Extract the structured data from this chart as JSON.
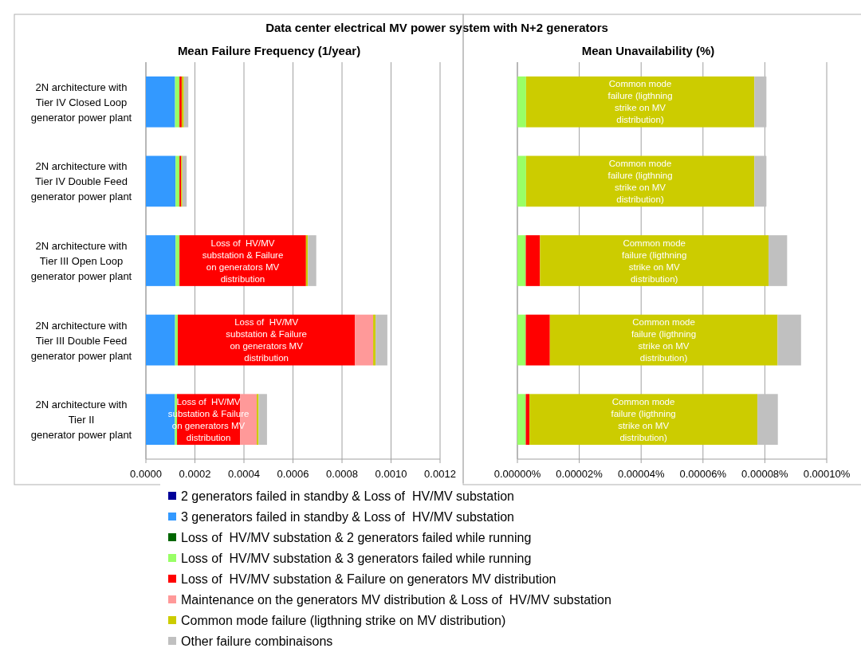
{
  "chart_data": [
    {
      "type": "bar",
      "orientation": "horizontal",
      "stacked": true,
      "title": "Mean Failure Frequency (1/year)",
      "annotations": [
        "Data center electrical MV power system with N+2 generators"
      ],
      "categories": [
        "2N architecture with\nTier IV Closed Loop\ngenerator power plant",
        "2N architecture with\nTier IV Double Feed\ngenerator power plant",
        "2N architecture with\nTier III Open Loop\ngenerator power plant",
        "2N architecture with\nTier III Double Feed\ngenerator power plant",
        "2N architecture with\nTier II\ngenerator power plant"
      ],
      "xlim": [
        0,
        0.0012
      ],
      "xticks": [
        {
          "value": 0,
          "label": "0.0000"
        },
        {
          "value": 0.0002,
          "label": "0.0002"
        },
        {
          "value": 0.0004,
          "label": "0.0004"
        },
        {
          "value": 0.0006,
          "label": "0.0006"
        },
        {
          "value": 0.0008,
          "label": "0.0008"
        },
        {
          "value": 0.001,
          "label": "0.0010"
        },
        {
          "value": 0.0012,
          "label": "0.0012"
        }
      ],
      "grid": "x",
      "legend": "bottom",
      "series": [
        {
          "name": "2 generators failed in standby & Loss of  HV/MV substation",
          "color": "#000099",
          "values": [
            0,
            0,
            0,
            0,
            0
          ]
        },
        {
          "name": "3 generators failed in standby & Loss of  HV/MV substation",
          "color": "#3399ff",
          "values": [
            0.000119,
            0.000121,
            0.000121,
            0.000119,
            0.000118
          ]
        },
        {
          "name": "Loss of  HV/MV substation & 2 generators failed while running",
          "color": "#006600",
          "values": [
            0,
            0,
            0,
            0,
            0
          ]
        },
        {
          "name": "Loss of  HV/MV substation & 3 generators failed while running",
          "color": "#99ff66",
          "values": [
            1.8e-05,
            1.6e-05,
            1.6e-05,
            1.1e-05,
            9e-06
          ]
        },
        {
          "name": "Loss of  HV/MV substation & Failure on generators MV distribution",
          "color": "#ff0000",
          "values": [
            9e-06,
            6.5e-06,
            0.000516,
            0.000723,
            0.000257
          ],
          "value_labels": [
            null,
            null,
            "Loss of  HV/MV\nsubstation & Failure\non generators MV\ndistribution",
            "Loss of  HV/MV\nsubstation & Failure\non generators MV\ndistribution",
            "Loss of  HV/MV\nsubstation & Failure\non generators MV\ndistribution"
          ]
        },
        {
          "name": "Maintenance on the generators MV distribution & Loss of  HV/MV substation",
          "color": "#ff9999",
          "values": [
            0,
            0,
            0,
            7.4e-05,
            6.8e-05
          ]
        },
        {
          "name": "Common mode failure (ligthning strike on MV distribution)",
          "color": "#cccc00",
          "values": [
            9e-06,
            5e-06,
            8e-06,
            1e-05,
            8e-06
          ]
        },
        {
          "name": "Other failure combinaisons",
          "color": "#c0c0c0",
          "values": [
            1.8e-05,
            1.8e-05,
            3.4e-05,
            4.8e-05,
            3.4e-05
          ]
        }
      ]
    },
    {
      "type": "bar",
      "orientation": "horizontal",
      "stacked": true,
      "title": "Mean Unavailability (%)",
      "tick_labels": "x",
      "categories": [
        null,
        null,
        null,
        null,
        null
      ],
      "xlim": [
        0,
        0.0001
      ],
      "xticks": [
        {
          "value": 0,
          "label": "0.00000%"
        },
        {
          "value": 2e-05,
          "label": "0.00002%"
        },
        {
          "value": 4e-05,
          "label": "0.00004%"
        },
        {
          "value": 6e-05,
          "label": "0.00006%"
        },
        {
          "value": 8e-05,
          "label": "0.00008%"
        },
        {
          "value": 0.0001,
          "label": "0.00010%"
        }
      ],
      "grid": "x",
      "series": [
        {
          "color": "#99ff66",
          "values": [
            2.8e-06,
            2.8e-06,
            2.7e-06,
            2.7e-06,
            2.7e-06
          ]
        },
        {
          "color": "#ff0000",
          "values": [
            0,
            0,
            4.6e-06,
            7.8e-06,
            1.2e-06
          ]
        },
        {
          "color": "#cccc00",
          "values": [
            7.38e-05,
            7.38e-05,
            7.39e-05,
            7.36e-05,
            7.37e-05
          ],
          "value_labels": [
            "Common mode\nfailure (ligthning\nstrike on MV\ndistribution)",
            "Common mode\nfailure (ligthning\nstrike on MV\ndistribution)",
            "Common mode\nfailure (ligthning\nstrike on MV\ndistribution)",
            "Common mode\nfailure (ligthning\nstrike on MV\ndistribution)",
            "Common mode\nfailure (ligthning\nstrike on MV\ndistribution)"
          ]
        },
        {
          "color": "#c0c0c0",
          "values": [
            3.9e-06,
            3.9e-06,
            6e-06,
            7.6e-06,
            6.6e-06
          ]
        }
      ]
    }
  ]
}
